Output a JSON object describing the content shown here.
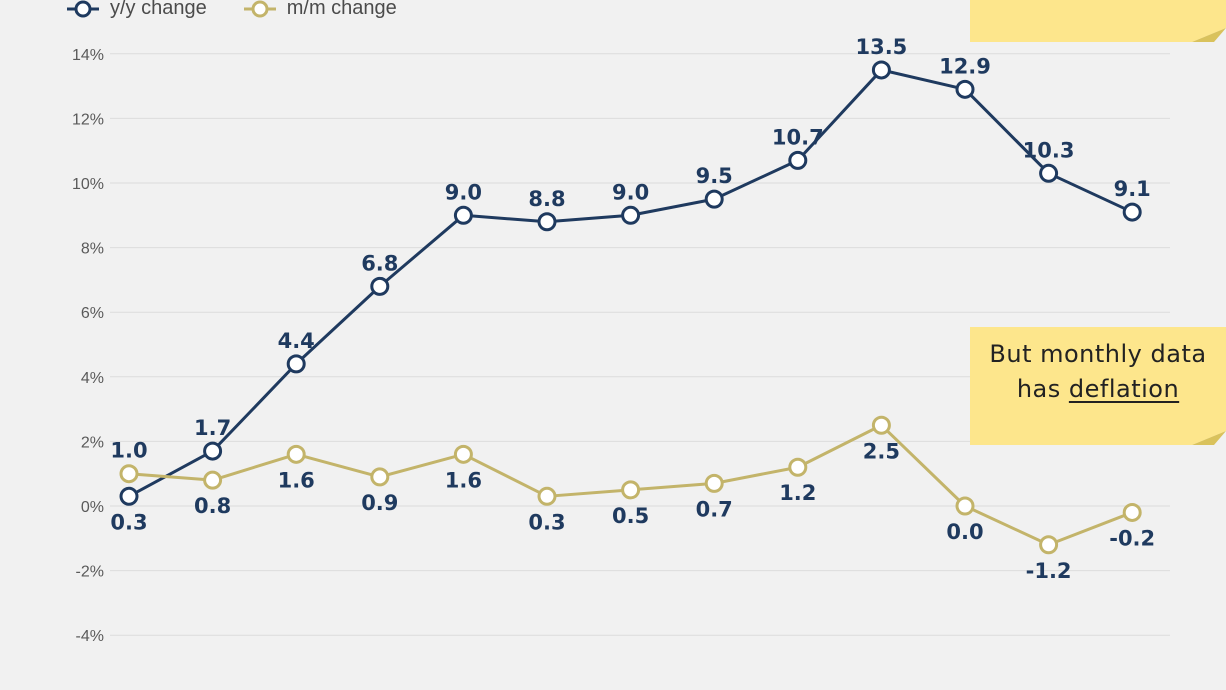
{
  "colors": {
    "yy": "#1f3a5f",
    "mm": "#c3b46a",
    "grid": "#dcdcdc",
    "axis_text": "#5a5a5a",
    "note": "#fde68c"
  },
  "legend": {
    "yy_label": "y/y change",
    "mm_label": "m/m change"
  },
  "note": {
    "line1": "But monthly data",
    "line2_prefix": "has",
    "line2_underlined": "deflation"
  },
  "chart_data": {
    "type": "line",
    "ylim": [
      -4,
      14
    ],
    "yticks": [
      -4,
      -2,
      0,
      2,
      4,
      6,
      8,
      10,
      12,
      14
    ],
    "ytick_labels": [
      "-4%",
      "-2%",
      "0%",
      "2%",
      "4%",
      "6%",
      "8%",
      "10%",
      "12%",
      "14%"
    ],
    "grid": true,
    "legend_position": "top-left",
    "series": [
      {
        "name": "y/y change",
        "values": [
          0.3,
          1.7,
          4.4,
          6.8,
          9.0,
          8.8,
          9.0,
          9.5,
          10.7,
          13.5,
          12.9,
          10.3,
          9.1
        ],
        "labels": [
          "0.3",
          "1.7",
          "4.4",
          "6.8",
          "9.0",
          "8.8",
          "9.0",
          "9.5",
          "10.7",
          "13.5",
          "12.9",
          "10.3",
          "9.1"
        ]
      },
      {
        "name": "m/m change",
        "values": [
          1.0,
          0.8,
          1.6,
          0.9,
          1.6,
          0.3,
          0.5,
          0.7,
          1.2,
          2.5,
          0.0,
          -1.2,
          -0.2
        ],
        "labels": [
          "1.0",
          "0.8",
          "1.6",
          "0.9",
          "1.6",
          "0.3",
          "0.5",
          "0.7",
          "1.2",
          "2.5",
          "0.0",
          "-1.2",
          "-0.2"
        ]
      }
    ]
  }
}
